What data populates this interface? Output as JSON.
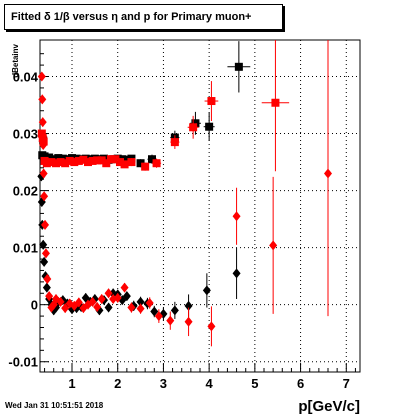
{
  "title": "Fitted δ 1/β versus η and p for Primary muon+",
  "timestamp": "Wed Jan 31 10:51:51 2018",
  "chart_data": {
    "type": "scatter",
    "xlabel": "p[GeV/c]",
    "ylabel": "dBetainv",
    "xlim": [
      0.3,
      7.3
    ],
    "ylim": [
      -0.0118,
      0.0464
    ],
    "xticks": [
      "1",
      "2",
      "3",
      "4",
      "5",
      "6",
      "7"
    ],
    "yticks": [
      "-0.01",
      "0",
      "0.01",
      "0.02",
      "0.03",
      "0.04"
    ],
    "grid": true,
    "colors": {
      "black": "#000000",
      "red": "#ff0000"
    },
    "series": [
      {
        "marker": "square",
        "color": "#000000",
        "points": [
          [
            0.35,
            0.0262,
            0.05,
            0.0006
          ],
          [
            0.37,
            0.0288,
            0.02,
            0.0006
          ],
          [
            0.4,
            0.026,
            0.03,
            0.0006
          ],
          [
            0.43,
            0.0255,
            0.03,
            0.0006
          ],
          [
            0.5,
            0.0258,
            0.03,
            0.0006
          ],
          [
            0.6,
            0.0255,
            0.03,
            0.0006
          ],
          [
            0.7,
            0.0257,
            0.03,
            0.0006
          ],
          [
            0.8,
            0.0256,
            0.03,
            0.0006
          ],
          [
            0.9,
            0.0255,
            0.03,
            0.0006
          ],
          [
            1.0,
            0.0257,
            0.03,
            0.0006
          ],
          [
            1.1,
            0.0256,
            0.03,
            0.0006
          ],
          [
            1.2,
            0.0255,
            0.03,
            0.0006
          ],
          [
            1.3,
            0.0256,
            0.03,
            0.0006
          ],
          [
            1.4,
            0.0255,
            0.03,
            0.0006
          ],
          [
            1.5,
            0.0256,
            0.03,
            0.0006
          ],
          [
            1.6,
            0.0255,
            0.03,
            0.0006
          ],
          [
            1.7,
            0.0256,
            0.03,
            0.0006
          ],
          [
            1.8,
            0.0254,
            0.03,
            0.0006
          ],
          [
            1.9,
            0.0255,
            0.03,
            0.0006
          ],
          [
            2.0,
            0.0256,
            0.03,
            0.0006
          ],
          [
            2.1,
            0.0255,
            0.03,
            0.0006
          ],
          [
            2.2,
            0.0254,
            0.03,
            0.0006
          ],
          [
            2.3,
            0.0256,
            0.03,
            0.0006
          ],
          [
            2.5,
            0.0248,
            0.06,
            0.0007
          ],
          [
            2.75,
            0.0255,
            0.1,
            0.0008
          ],
          [
            3.25,
            0.0293,
            0.1,
            0.0012
          ],
          [
            3.7,
            0.0318,
            0.12,
            0.002
          ],
          [
            4.0,
            0.0312,
            0.12,
            0.0025
          ],
          [
            4.65,
            0.0417,
            0.25,
            0.0045
          ]
        ]
      },
      {
        "marker": "square",
        "color": "#ff0000",
        "points": [
          [
            0.34,
            0.03,
            0.04,
            0.0006
          ],
          [
            0.36,
            0.0292,
            0.02,
            0.0006
          ],
          [
            0.38,
            0.0286,
            0.02,
            0.0006
          ],
          [
            0.4,
            0.0252,
            0.03,
            0.0006
          ],
          [
            0.45,
            0.0248,
            0.03,
            0.0006
          ],
          [
            0.55,
            0.025,
            0.03,
            0.0006
          ],
          [
            0.65,
            0.0248,
            0.03,
            0.0006
          ],
          [
            0.75,
            0.025,
            0.03,
            0.0006
          ],
          [
            0.85,
            0.0248,
            0.03,
            0.0006
          ],
          [
            0.95,
            0.0252,
            0.03,
            0.0006
          ],
          [
            1.05,
            0.025,
            0.03,
            0.0006
          ],
          [
            1.15,
            0.0252,
            0.03,
            0.0006
          ],
          [
            1.25,
            0.0254,
            0.03,
            0.0006
          ],
          [
            1.35,
            0.025,
            0.03,
            0.0006
          ],
          [
            1.45,
            0.0252,
            0.03,
            0.0006
          ],
          [
            1.55,
            0.0253,
            0.03,
            0.0006
          ],
          [
            1.65,
            0.0253,
            0.03,
            0.0006
          ],
          [
            1.75,
            0.0248,
            0.03,
            0.0006
          ],
          [
            1.85,
            0.0255,
            0.03,
            0.0006
          ],
          [
            1.95,
            0.0255,
            0.03,
            0.0006
          ],
          [
            2.05,
            0.025,
            0.03,
            0.0006
          ],
          [
            2.15,
            0.0246,
            0.03,
            0.0006
          ],
          [
            2.3,
            0.025,
            0.05,
            0.0007
          ],
          [
            2.6,
            0.0242,
            0.07,
            0.0007
          ],
          [
            2.85,
            0.0248,
            0.1,
            0.0008
          ],
          [
            3.25,
            0.0285,
            0.1,
            0.0012
          ],
          [
            3.65,
            0.0311,
            0.12,
            0.002
          ],
          [
            4.05,
            0.0357,
            0.15,
            0.0035
          ],
          [
            5.45,
            0.0354,
            0.3,
            0.012
          ]
        ]
      },
      {
        "marker": "diamond",
        "color": "#000000",
        "points": [
          [
            0.33,
            0.0225,
            0,
            0.0008
          ],
          [
            0.34,
            0.018,
            0,
            0.0008
          ],
          [
            0.35,
            0.014,
            0,
            0.0008
          ],
          [
            0.37,
            0.0105,
            0,
            0.0008
          ],
          [
            0.39,
            0.0075,
            0,
            0.0008
          ],
          [
            0.42,
            0.005,
            0,
            0.0008
          ],
          [
            0.45,
            0.003,
            0,
            0.0008
          ],
          [
            0.5,
            0.001,
            0,
            0.0008
          ],
          [
            0.55,
            0.0,
            0,
            0.0008
          ],
          [
            0.6,
            -0.001,
            0,
            0.0008
          ],
          [
            0.65,
            -0.0005,
            0,
            0.0008
          ],
          [
            0.7,
            0.0005,
            0,
            0.0008
          ],
          [
            0.8,
            0.0008,
            0,
            0.0008
          ],
          [
            0.9,
            0.0002,
            0,
            0.0008
          ],
          [
            1.0,
            -0.0008,
            0,
            0.0008
          ],
          [
            1.1,
            -0.0006,
            0,
            0.0008
          ],
          [
            1.2,
            -0.0004,
            0,
            0.0008
          ],
          [
            1.3,
            0.0012,
            0,
            0.0008
          ],
          [
            1.4,
            0.0005,
            0,
            0.0008
          ],
          [
            1.5,
            0.001,
            0,
            0.0008
          ],
          [
            1.6,
            -0.001,
            0,
            0.0008
          ],
          [
            1.7,
            0.0008,
            0,
            0.0008
          ],
          [
            1.8,
            -0.0005,
            0,
            0.0008
          ],
          [
            1.9,
            0.002,
            0,
            0.0008
          ],
          [
            2.0,
            0.0018,
            0,
            0.0008
          ],
          [
            2.1,
            0.0008,
            0,
            0.0008
          ],
          [
            2.2,
            0.0015,
            0,
            0.0008
          ],
          [
            2.35,
            -0.0002,
            0,
            0.0009
          ],
          [
            2.5,
            0.0005,
            0,
            0.0009
          ],
          [
            2.65,
            0.0002,
            0,
            0.001
          ],
          [
            2.8,
            -0.0012,
            0,
            0.001
          ],
          [
            3.0,
            -0.0016,
            0,
            0.0012
          ],
          [
            3.25,
            -0.001,
            0,
            0.0015
          ],
          [
            3.55,
            -0.0002,
            0,
            0.002
          ],
          [
            3.95,
            0.0025,
            0,
            0.003
          ],
          [
            4.6,
            0.0055,
            0,
            0.0045
          ]
        ]
      },
      {
        "marker": "diamond",
        "color": "#ff0000",
        "points": [
          [
            0.34,
            0.04,
            0,
            0.0006
          ],
          [
            0.35,
            0.036,
            0,
            0.0008
          ],
          [
            0.36,
            0.032,
            0,
            0.0008
          ],
          [
            0.37,
            0.028,
            0,
            0.0008
          ],
          [
            0.38,
            0.023,
            0,
            0.0008
          ],
          [
            0.39,
            0.019,
            0,
            0.0008
          ],
          [
            0.41,
            0.014,
            0,
            0.0008
          ],
          [
            0.43,
            0.009,
            0,
            0.0008
          ],
          [
            0.46,
            0.0045,
            0,
            0.0008
          ],
          [
            0.5,
            0.0015,
            0,
            0.0008
          ],
          [
            0.55,
            -0.0005,
            0,
            0.0008
          ],
          [
            0.6,
            0.0,
            0,
            0.0008
          ],
          [
            0.65,
            0.001,
            0,
            0.0008
          ],
          [
            0.75,
            0.0005,
            0,
            0.0008
          ],
          [
            0.85,
            -0.0006,
            0,
            0.0008
          ],
          [
            0.95,
            0.0002,
            0,
            0.0008
          ],
          [
            1.05,
            -0.0002,
            0,
            0.0008
          ],
          [
            1.15,
            0.0004,
            0,
            0.0008
          ],
          [
            1.25,
            -0.0006,
            0,
            0.0008
          ],
          [
            1.35,
            0.0,
            0,
            0.0008
          ],
          [
            1.45,
            0.0005,
            0,
            0.0008
          ],
          [
            1.55,
            -0.0004,
            0,
            0.0008
          ],
          [
            1.65,
            0.001,
            0,
            0.0008
          ],
          [
            1.8,
            0.002,
            0,
            0.0008
          ],
          [
            1.9,
            0.001,
            0,
            0.0008
          ],
          [
            2.0,
            0.0012,
            0,
            0.0008
          ],
          [
            2.15,
            0.003,
            0,
            0.0008
          ],
          [
            2.3,
            -0.0005,
            0,
            0.0009
          ],
          [
            2.5,
            -0.0007,
            0,
            0.0009
          ],
          [
            2.7,
            0.0003,
            0,
            0.001
          ],
          [
            2.9,
            -0.002,
            0,
            0.0012
          ],
          [
            3.15,
            -0.0028,
            0,
            0.0016
          ],
          [
            3.55,
            -0.003,
            0,
            0.0025
          ],
          [
            4.05,
            -0.0038,
            0,
            0.0035
          ],
          [
            4.6,
            0.0155,
            0,
            0.005
          ],
          [
            5.4,
            0.0104,
            0,
            0.012
          ],
          [
            6.6,
            0.023,
            0,
            0.025
          ]
        ]
      }
    ]
  }
}
